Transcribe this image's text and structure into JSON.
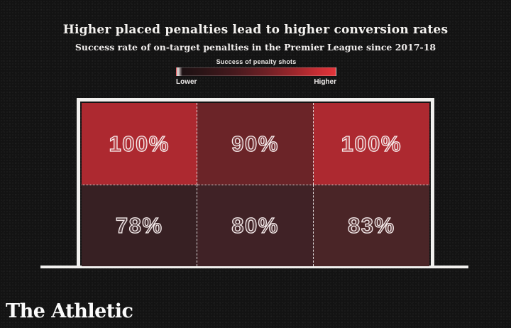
{
  "title": "Higher placed penalties lead to higher conversion rates",
  "subtitle": "Success rate of on-target penalties in the Premier League since 2017-18",
  "legend": {
    "title": "Success of penalty shots",
    "low_label": "Lower",
    "high_label": "Higher",
    "gradient_start": "#1d1113",
    "gradient_end": "#e2343a"
  },
  "branding": {
    "logo": "The Athletic"
  },
  "chart_data": {
    "type": "heatmap",
    "title": "Higher placed penalties lead to higher conversion rates",
    "subtitle": "Success rate of on-target penalties in the Premier League since 2017-18",
    "unit": "%",
    "rows": [
      "top",
      "bottom"
    ],
    "columns": [
      "left",
      "centre",
      "right"
    ],
    "values": [
      [
        100,
        90,
        100
      ],
      [
        78,
        80,
        83
      ]
    ],
    "cells": [
      {
        "row": "top",
        "column": "left",
        "value": 100,
        "label": "100%",
        "color": "#ad2930"
      },
      {
        "row": "top",
        "column": "centre",
        "value": 90,
        "label": "90%",
        "color": "#6b2428"
      },
      {
        "row": "top",
        "column": "right",
        "value": 100,
        "label": "100%",
        "color": "#ad2930"
      },
      {
        "row": "bottom",
        "column": "left",
        "value": 78,
        "label": "78%",
        "color": "#372023"
      },
      {
        "row": "bottom",
        "column": "centre",
        "value": 80,
        "label": "80%",
        "color": "#402226"
      },
      {
        "row": "bottom",
        "column": "right",
        "value": 83,
        "label": "83%",
        "color": "#4a2527"
      }
    ],
    "legend": {
      "title": "Success of penalty shots",
      "min_label": "Lower",
      "max_label": "Higher",
      "position": "top-center"
    },
    "layout": {
      "shape": "football-goal",
      "grid": "3x2",
      "frame_color": "#f1f0ee",
      "background": "#131313"
    }
  }
}
